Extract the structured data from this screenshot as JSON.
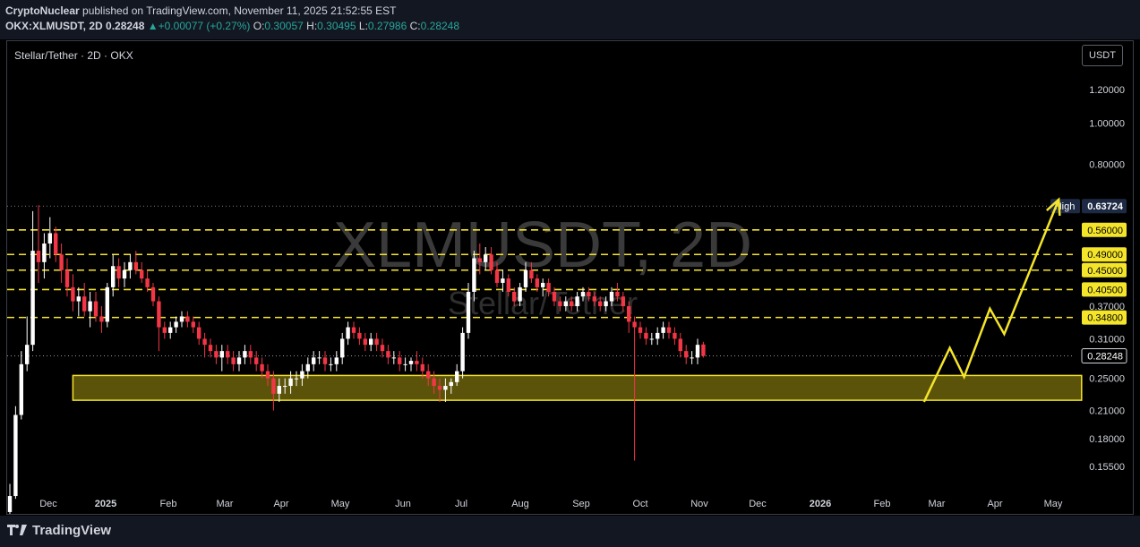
{
  "header": {
    "author": "CryptoNuclear",
    "published": " published on TradingView.com, November 11, 2025 21:52:55 EST",
    "symbol": "OKX:XLMUSDT, 2D",
    "last": "0.28248",
    "change_arrow": "▲",
    "change": "+0.00077 (+0.27%)",
    "o_label": "O:",
    "o_value": "0.30057",
    "h_label": "H:",
    "h_value": "0.30495",
    "l_label": "L:",
    "l_value": "0.27986",
    "c_label": "C:",
    "c_value": "0.28248"
  },
  "footer": {
    "logo_text": "TradingView"
  },
  "chart_data": {
    "type": "candlestick",
    "title": "Stellar/Tether · 2D · OKX",
    "watermark": "XLMUSDT, 2D",
    "watermark_sub": "Stellar/Tether",
    "currency": "USDT",
    "y_scale": "log",
    "ylim": [
      0.135,
      1.38
    ],
    "y_ticks": [
      {
        "value": 1.2,
        "label": "1.20000"
      },
      {
        "value": 1.0,
        "label": "1.00000"
      },
      {
        "value": 0.8,
        "label": "0.80000"
      },
      {
        "value": 0.31,
        "label": "0.31000"
      },
      {
        "value": 0.25,
        "label": "0.25000"
      },
      {
        "value": 0.21,
        "label": "0.21000"
      },
      {
        "value": 0.18,
        "label": "0.18000"
      },
      {
        "value": 0.155,
        "label": "0.15500"
      }
    ],
    "x_ticks": [
      "Dec",
      "2025",
      "Feb",
      "Mar",
      "Apr",
      "May",
      "Jun",
      "Jul",
      "Aug",
      "Sep",
      "Oct",
      "Nov",
      "Dec",
      "2026",
      "Feb",
      "Mar",
      "Apr",
      "May"
    ],
    "x_ticks_bold": [
      "2025",
      "2026"
    ],
    "resistance_levels": [
      {
        "value": 0.56,
        "label": "0.56000"
      },
      {
        "value": 0.49,
        "label": "0.49000"
      },
      {
        "value": 0.45,
        "label": "0.45000"
      },
      {
        "value": 0.405,
        "label": "0.40500"
      },
      {
        "value": 0.37,
        "label": "0.37000"
      },
      {
        "value": 0.348,
        "label": "0.34800"
      }
    ],
    "resistance_color": "#f5e52a",
    "high": {
      "label": "High",
      "value": 0.63724,
      "text": "0.63724"
    },
    "current_price": {
      "value": 0.28248,
      "text": "0.28248"
    },
    "support_zone": {
      "low": 0.222,
      "high": 0.254,
      "from_day": 22,
      "to_day": 374,
      "fill": "#7a6f0e",
      "border": "#f5e52a"
    },
    "projection": {
      "color": "#f5e52a",
      "points": [
        [
          0.22,
          0
        ],
        [
          0.295,
          0
        ],
        [
          0.252,
          0
        ],
        [
          0.365,
          0
        ],
        [
          0.318,
          0
        ],
        [
          0.66,
          0
        ]
      ],
      "days": [
        319,
        328,
        333,
        342,
        347,
        366
      ]
    },
    "up_color": "#ffffff",
    "down_color": "#f23645",
    "candles": [
      {
        "d": 0,
        "o": 0.121,
        "h": 0.141,
        "l": 0.118,
        "c": 0.132
      },
      {
        "d": 2,
        "o": 0.132,
        "h": 0.215,
        "l": 0.13,
        "c": 0.205
      },
      {
        "d": 4,
        "o": 0.205,
        "h": 0.29,
        "l": 0.2,
        "c": 0.27
      },
      {
        "d": 6,
        "o": 0.27,
        "h": 0.35,
        "l": 0.26,
        "c": 0.3
      },
      {
        "d": 8,
        "o": 0.3,
        "h": 0.62,
        "l": 0.29,
        "c": 0.5
      },
      {
        "d": 10,
        "o": 0.5,
        "h": 0.64,
        "l": 0.42,
        "c": 0.47
      },
      {
        "d": 12,
        "o": 0.47,
        "h": 0.55,
        "l": 0.43,
        "c": 0.52
      },
      {
        "d": 14,
        "o": 0.52,
        "h": 0.6,
        "l": 0.48,
        "c": 0.55
      },
      {
        "d": 16,
        "o": 0.55,
        "h": 0.57,
        "l": 0.47,
        "c": 0.49
      },
      {
        "d": 18,
        "o": 0.49,
        "h": 0.52,
        "l": 0.42,
        "c": 0.45
      },
      {
        "d": 20,
        "o": 0.45,
        "h": 0.48,
        "l": 0.39,
        "c": 0.41
      },
      {
        "d": 22,
        "o": 0.41,
        "h": 0.44,
        "l": 0.36,
        "c": 0.38
      },
      {
        "d": 24,
        "o": 0.38,
        "h": 0.41,
        "l": 0.35,
        "c": 0.39
      },
      {
        "d": 26,
        "o": 0.39,
        "h": 0.42,
        "l": 0.35,
        "c": 0.36
      },
      {
        "d": 28,
        "o": 0.36,
        "h": 0.4,
        "l": 0.33,
        "c": 0.38
      },
      {
        "d": 30,
        "o": 0.38,
        "h": 0.4,
        "l": 0.34,
        "c": 0.35
      },
      {
        "d": 32,
        "o": 0.35,
        "h": 0.37,
        "l": 0.32,
        "c": 0.34
      },
      {
        "d": 34,
        "o": 0.34,
        "h": 0.42,
        "l": 0.33,
        "c": 0.41
      },
      {
        "d": 36,
        "o": 0.41,
        "h": 0.49,
        "l": 0.39,
        "c": 0.46
      },
      {
        "d": 38,
        "o": 0.46,
        "h": 0.48,
        "l": 0.41,
        "c": 0.43
      },
      {
        "d": 40,
        "o": 0.43,
        "h": 0.47,
        "l": 0.41,
        "c": 0.45
      },
      {
        "d": 42,
        "o": 0.45,
        "h": 0.49,
        "l": 0.43,
        "c": 0.47
      },
      {
        "d": 44,
        "o": 0.47,
        "h": 0.5,
        "l": 0.44,
        "c": 0.45
      },
      {
        "d": 46,
        "o": 0.45,
        "h": 0.47,
        "l": 0.42,
        "c": 0.43
      },
      {
        "d": 48,
        "o": 0.43,
        "h": 0.45,
        "l": 0.4,
        "c": 0.41
      },
      {
        "d": 50,
        "o": 0.41,
        "h": 0.42,
        "l": 0.37,
        "c": 0.38
      },
      {
        "d": 52,
        "o": 0.38,
        "h": 0.39,
        "l": 0.29,
        "c": 0.33
      },
      {
        "d": 54,
        "o": 0.33,
        "h": 0.34,
        "l": 0.31,
        "c": 0.32
      },
      {
        "d": 56,
        "o": 0.32,
        "h": 0.34,
        "l": 0.31,
        "c": 0.33
      },
      {
        "d": 58,
        "o": 0.33,
        "h": 0.35,
        "l": 0.32,
        "c": 0.34
      },
      {
        "d": 60,
        "o": 0.34,
        "h": 0.36,
        "l": 0.33,
        "c": 0.35
      },
      {
        "d": 62,
        "o": 0.35,
        "h": 0.36,
        "l": 0.33,
        "c": 0.34
      },
      {
        "d": 64,
        "o": 0.34,
        "h": 0.35,
        "l": 0.32,
        "c": 0.33
      },
      {
        "d": 66,
        "o": 0.33,
        "h": 0.34,
        "l": 0.3,
        "c": 0.31
      },
      {
        "d": 68,
        "o": 0.31,
        "h": 0.32,
        "l": 0.28,
        "c": 0.3
      },
      {
        "d": 70,
        "o": 0.3,
        "h": 0.31,
        "l": 0.28,
        "c": 0.29
      },
      {
        "d": 72,
        "o": 0.29,
        "h": 0.3,
        "l": 0.27,
        "c": 0.28
      },
      {
        "d": 74,
        "o": 0.28,
        "h": 0.3,
        "l": 0.26,
        "c": 0.29
      },
      {
        "d": 76,
        "o": 0.29,
        "h": 0.3,
        "l": 0.27,
        "c": 0.28
      },
      {
        "d": 78,
        "o": 0.28,
        "h": 0.29,
        "l": 0.26,
        "c": 0.27
      },
      {
        "d": 80,
        "o": 0.27,
        "h": 0.29,
        "l": 0.26,
        "c": 0.28
      },
      {
        "d": 82,
        "o": 0.28,
        "h": 0.3,
        "l": 0.27,
        "c": 0.29
      },
      {
        "d": 84,
        "o": 0.29,
        "h": 0.3,
        "l": 0.27,
        "c": 0.28
      },
      {
        "d": 86,
        "o": 0.28,
        "h": 0.29,
        "l": 0.26,
        "c": 0.27
      },
      {
        "d": 88,
        "o": 0.27,
        "h": 0.28,
        "l": 0.25,
        "c": 0.26
      },
      {
        "d": 90,
        "o": 0.26,
        "h": 0.27,
        "l": 0.24,
        "c": 0.25
      },
      {
        "d": 92,
        "o": 0.25,
        "h": 0.26,
        "l": 0.21,
        "c": 0.23
      },
      {
        "d": 94,
        "o": 0.23,
        "h": 0.25,
        "l": 0.22,
        "c": 0.24
      },
      {
        "d": 96,
        "o": 0.24,
        "h": 0.25,
        "l": 0.23,
        "c": 0.24
      },
      {
        "d": 98,
        "o": 0.24,
        "h": 0.26,
        "l": 0.23,
        "c": 0.25
      },
      {
        "d": 100,
        "o": 0.25,
        "h": 0.26,
        "l": 0.24,
        "c": 0.25
      },
      {
        "d": 102,
        "o": 0.25,
        "h": 0.27,
        "l": 0.24,
        "c": 0.26
      },
      {
        "d": 104,
        "o": 0.26,
        "h": 0.28,
        "l": 0.25,
        "c": 0.27
      },
      {
        "d": 106,
        "o": 0.27,
        "h": 0.29,
        "l": 0.26,
        "c": 0.28
      },
      {
        "d": 108,
        "o": 0.28,
        "h": 0.29,
        "l": 0.27,
        "c": 0.28
      },
      {
        "d": 110,
        "o": 0.28,
        "h": 0.29,
        "l": 0.26,
        "c": 0.27
      },
      {
        "d": 112,
        "o": 0.27,
        "h": 0.28,
        "l": 0.26,
        "c": 0.27
      },
      {
        "d": 114,
        "o": 0.27,
        "h": 0.29,
        "l": 0.26,
        "c": 0.28
      },
      {
        "d": 116,
        "o": 0.28,
        "h": 0.32,
        "l": 0.27,
        "c": 0.31
      },
      {
        "d": 118,
        "o": 0.31,
        "h": 0.34,
        "l": 0.3,
        "c": 0.33
      },
      {
        "d": 120,
        "o": 0.33,
        "h": 0.34,
        "l": 0.31,
        "c": 0.32
      },
      {
        "d": 122,
        "o": 0.32,
        "h": 0.33,
        "l": 0.3,
        "c": 0.31
      },
      {
        "d": 124,
        "o": 0.31,
        "h": 0.32,
        "l": 0.29,
        "c": 0.3
      },
      {
        "d": 126,
        "o": 0.3,
        "h": 0.32,
        "l": 0.29,
        "c": 0.31
      },
      {
        "d": 128,
        "o": 0.31,
        "h": 0.32,
        "l": 0.29,
        "c": 0.3
      },
      {
        "d": 130,
        "o": 0.3,
        "h": 0.31,
        "l": 0.28,
        "c": 0.29
      },
      {
        "d": 132,
        "o": 0.29,
        "h": 0.3,
        "l": 0.27,
        "c": 0.28
      },
      {
        "d": 134,
        "o": 0.28,
        "h": 0.29,
        "l": 0.27,
        "c": 0.28
      },
      {
        "d": 136,
        "o": 0.28,
        "h": 0.29,
        "l": 0.26,
        "c": 0.27
      },
      {
        "d": 138,
        "o": 0.27,
        "h": 0.28,
        "l": 0.26,
        "c": 0.27
      },
      {
        "d": 140,
        "o": 0.27,
        "h": 0.28,
        "l": 0.26,
        "c": 0.275
      },
      {
        "d": 142,
        "o": 0.275,
        "h": 0.29,
        "l": 0.26,
        "c": 0.27
      },
      {
        "d": 144,
        "o": 0.27,
        "h": 0.28,
        "l": 0.25,
        "c": 0.26
      },
      {
        "d": 146,
        "o": 0.26,
        "h": 0.27,
        "l": 0.24,
        "c": 0.25
      },
      {
        "d": 148,
        "o": 0.25,
        "h": 0.26,
        "l": 0.23,
        "c": 0.24
      },
      {
        "d": 150,
        "o": 0.24,
        "h": 0.25,
        "l": 0.22,
        "c": 0.235
      },
      {
        "d": 152,
        "o": 0.235,
        "h": 0.25,
        "l": 0.22,
        "c": 0.24
      },
      {
        "d": 154,
        "o": 0.24,
        "h": 0.25,
        "l": 0.23,
        "c": 0.245
      },
      {
        "d": 156,
        "o": 0.245,
        "h": 0.27,
        "l": 0.24,
        "c": 0.26
      },
      {
        "d": 158,
        "o": 0.26,
        "h": 0.33,
        "l": 0.25,
        "c": 0.32
      },
      {
        "d": 160,
        "o": 0.32,
        "h": 0.42,
        "l": 0.31,
        "c": 0.4
      },
      {
        "d": 162,
        "o": 0.4,
        "h": 0.5,
        "l": 0.38,
        "c": 0.48
      },
      {
        "d": 164,
        "o": 0.48,
        "h": 0.52,
        "l": 0.44,
        "c": 0.47
      },
      {
        "d": 166,
        "o": 0.47,
        "h": 0.51,
        "l": 0.45,
        "c": 0.49
      },
      {
        "d": 168,
        "o": 0.49,
        "h": 0.51,
        "l": 0.44,
        "c": 0.45
      },
      {
        "d": 170,
        "o": 0.45,
        "h": 0.47,
        "l": 0.41,
        "c": 0.42
      },
      {
        "d": 172,
        "o": 0.42,
        "h": 0.45,
        "l": 0.4,
        "c": 0.43
      },
      {
        "d": 174,
        "o": 0.43,
        "h": 0.44,
        "l": 0.39,
        "c": 0.4
      },
      {
        "d": 176,
        "o": 0.4,
        "h": 0.41,
        "l": 0.37,
        "c": 0.38
      },
      {
        "d": 178,
        "o": 0.38,
        "h": 0.42,
        "l": 0.37,
        "c": 0.41
      },
      {
        "d": 180,
        "o": 0.41,
        "h": 0.47,
        "l": 0.4,
        "c": 0.45
      },
      {
        "d": 182,
        "o": 0.45,
        "h": 0.47,
        "l": 0.42,
        "c": 0.43
      },
      {
        "d": 184,
        "o": 0.43,
        "h": 0.44,
        "l": 0.4,
        "c": 0.41
      },
      {
        "d": 186,
        "o": 0.41,
        "h": 0.43,
        "l": 0.39,
        "c": 0.42
      },
      {
        "d": 188,
        "o": 0.42,
        "h": 0.43,
        "l": 0.39,
        "c": 0.4
      },
      {
        "d": 190,
        "o": 0.4,
        "h": 0.41,
        "l": 0.37,
        "c": 0.38
      },
      {
        "d": 192,
        "o": 0.38,
        "h": 0.39,
        "l": 0.36,
        "c": 0.37
      },
      {
        "d": 194,
        "o": 0.37,
        "h": 0.39,
        "l": 0.36,
        "c": 0.38
      },
      {
        "d": 196,
        "o": 0.38,
        "h": 0.39,
        "l": 0.36,
        "c": 0.37
      },
      {
        "d": 198,
        "o": 0.37,
        "h": 0.4,
        "l": 0.36,
        "c": 0.39
      },
      {
        "d": 200,
        "o": 0.39,
        "h": 0.41,
        "l": 0.38,
        "c": 0.4
      },
      {
        "d": 202,
        "o": 0.4,
        "h": 0.41,
        "l": 0.38,
        "c": 0.39
      },
      {
        "d": 204,
        "o": 0.39,
        "h": 0.4,
        "l": 0.37,
        "c": 0.38
      },
      {
        "d": 206,
        "o": 0.38,
        "h": 0.39,
        "l": 0.36,
        "c": 0.37
      },
      {
        "d": 208,
        "o": 0.37,
        "h": 0.39,
        "l": 0.36,
        "c": 0.38
      },
      {
        "d": 210,
        "o": 0.38,
        "h": 0.41,
        "l": 0.37,
        "c": 0.4
      },
      {
        "d": 212,
        "o": 0.4,
        "h": 0.42,
        "l": 0.38,
        "c": 0.39
      },
      {
        "d": 214,
        "o": 0.39,
        "h": 0.4,
        "l": 0.36,
        "c": 0.37
      },
      {
        "d": 216,
        "o": 0.37,
        "h": 0.38,
        "l": 0.32,
        "c": 0.34
      },
      {
        "d": 218,
        "o": 0.34,
        "h": 0.35,
        "l": 0.16,
        "c": 0.33
      },
      {
        "d": 220,
        "o": 0.33,
        "h": 0.34,
        "l": 0.31,
        "c": 0.32
      },
      {
        "d": 222,
        "o": 0.32,
        "h": 0.33,
        "l": 0.3,
        "c": 0.31
      },
      {
        "d": 224,
        "o": 0.31,
        "h": 0.32,
        "l": 0.3,
        "c": 0.31
      },
      {
        "d": 226,
        "o": 0.31,
        "h": 0.33,
        "l": 0.3,
        "c": 0.32
      },
      {
        "d": 228,
        "o": 0.32,
        "h": 0.34,
        "l": 0.31,
        "c": 0.33
      },
      {
        "d": 230,
        "o": 0.33,
        "h": 0.34,
        "l": 0.31,
        "c": 0.32
      },
      {
        "d": 232,
        "o": 0.32,
        "h": 0.33,
        "l": 0.3,
        "c": 0.31
      },
      {
        "d": 234,
        "o": 0.31,
        "h": 0.32,
        "l": 0.28,
        "c": 0.29
      },
      {
        "d": 236,
        "o": 0.29,
        "h": 0.3,
        "l": 0.27,
        "c": 0.28
      },
      {
        "d": 238,
        "o": 0.28,
        "h": 0.29,
        "l": 0.27,
        "c": 0.28
      },
      {
        "d": 240,
        "o": 0.28,
        "h": 0.31,
        "l": 0.27,
        "c": 0.3
      },
      {
        "d": 242,
        "o": 0.30057,
        "h": 0.30495,
        "l": 0.27986,
        "c": 0.28248
      }
    ],
    "x_axis": {
      "start_day": 0,
      "end_day": 410
    }
  }
}
